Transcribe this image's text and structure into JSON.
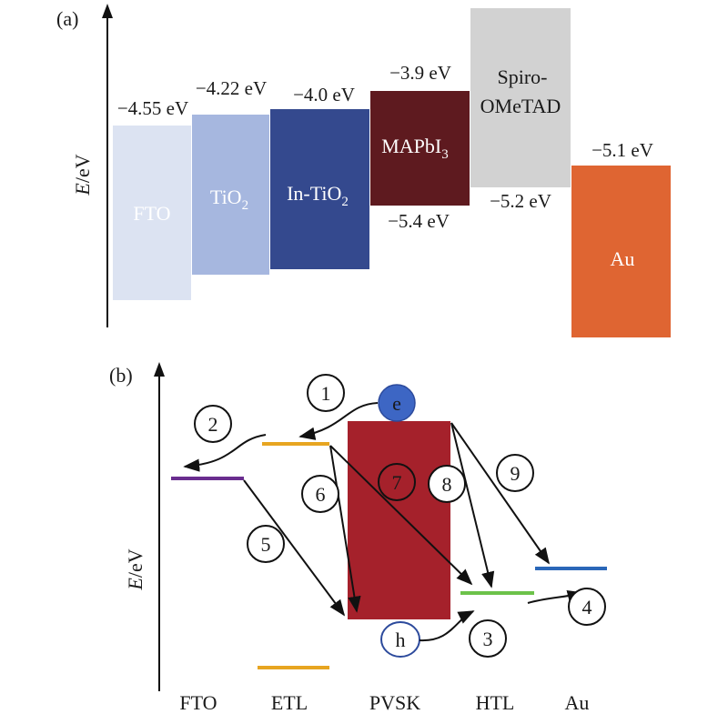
{
  "panel_a": {
    "label": "(a)",
    "y_axis_label": "E",
    "y_axis_unit": "/eV",
    "bars": [
      {
        "name": "FTO",
        "label": "FTO",
        "sub": "",
        "top_level": "−4.55 eV",
        "bottom_level": "",
        "color": "#dce3f2",
        "text_color": "white"
      },
      {
        "name": "TiO2",
        "label": "TiO",
        "sub": "2",
        "top_level": "−4.22 eV",
        "bottom_level": "",
        "color": "#a6b7df",
        "text_color": "white"
      },
      {
        "name": "In-TiO2",
        "label": "In-TiO",
        "sub": "2",
        "top_level": "−4.0 eV",
        "bottom_level": "",
        "color": "#34498e",
        "text_color": "white"
      },
      {
        "name": "MAPbI3",
        "label": "MAPbI",
        "sub": "3",
        "top_level": "−3.9 eV",
        "bottom_level": "−5.4 eV",
        "color": "#5e1a1f",
        "text_color": "white"
      },
      {
        "name": "Spiro-OMeTAD",
        "label_line1": "Spiro-",
        "label_line2": "OMeTAD",
        "top_level": "",
        "bottom_level": "−5.2 eV",
        "color": "#d2d2d2",
        "text_color": "black"
      },
      {
        "name": "Au",
        "label": "Au",
        "sub": "",
        "top_level": "−5.1 eV",
        "bottom_level": "",
        "color": "#df6532",
        "text_color": "white"
      }
    ]
  },
  "panel_b": {
    "label": "(b)",
    "y_axis_label": "E",
    "y_axis_unit": "/eV",
    "electron_label": "e",
    "hole_label": "h",
    "step_numbers": [
      "1",
      "2",
      "3",
      "4",
      "5",
      "6",
      "7",
      "8",
      "9"
    ],
    "x_labels": [
      "FTO",
      "ETL",
      "PVSK",
      "HTL",
      "Au"
    ],
    "colors": {
      "fto_level": "#6a2d8f",
      "etl_level": "#e7a521",
      "pvsk_block": "#a5212b",
      "htl_level": "#6cc24a",
      "au_level": "#2a67b8",
      "electron": "#3d66c4",
      "hole_outline": "#2c4a9c"
    }
  }
}
